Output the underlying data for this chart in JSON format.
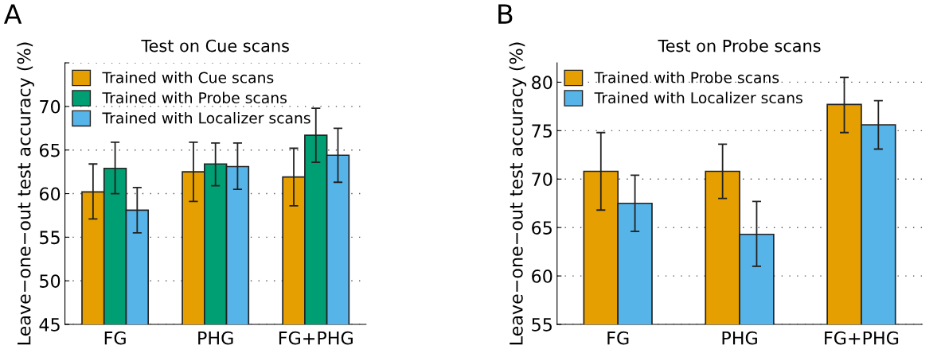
{
  "chart_data": [
    {
      "type": "bar",
      "title": "Test on Cue scans",
      "ylabel": "Leave−one−out test accuracy (%)",
      "annotations": [
        "A"
      ],
      "categories": [
        "FG",
        "PHG",
        "FG+PHG"
      ],
      "series": [
        {
          "name": "Trained with Cue scans",
          "color": "#e69f00",
          "values": [
            60.2,
            62.5,
            61.9
          ],
          "errors": [
            [
              57.1,
              63.4
            ],
            [
              59.1,
              65.9
            ],
            [
              58.6,
              65.2
            ]
          ]
        },
        {
          "name": "Trained with Probe scans",
          "color": "#009e73",
          "values": [
            62.9,
            63.4,
            66.7
          ],
          "errors": [
            [
              60.0,
              65.9
            ],
            [
              60.9,
              65.8
            ],
            [
              63.6,
              69.8
            ]
          ]
        },
        {
          "name": "Trained with Localizer scans",
          "color": "#56b4e9",
          "values": [
            58.1,
            63.1,
            64.4
          ],
          "errors": [
            [
              55.5,
              60.7
            ],
            [
              60.5,
              65.8
            ],
            [
              61.3,
              67.5
            ]
          ]
        }
      ],
      "ylim": [
        45,
        75
      ],
      "yticks": [
        45,
        50,
        55,
        60,
        65,
        70,
        {
          "value": 75,
          "label": null
        }
      ],
      "grid": "y",
      "legend": "top left"
    },
    {
      "type": "bar",
      "title": "Test on Probe scans",
      "ylabel": "Leave−one−out test accuracy (%)",
      "annotations": [
        "B"
      ],
      "categories": [
        "FG",
        "PHG",
        "FG+PHG"
      ],
      "series": [
        {
          "name": "Trained with Probe scans",
          "color": "#e69f00",
          "values": [
            70.8,
            70.8,
            77.7
          ],
          "errors": [
            [
              66.8,
              74.8
            ],
            [
              68.0,
              73.6
            ],
            [
              74.8,
              80.5
            ]
          ]
        },
        {
          "name": "Trained with Localizer scans",
          "color": "#56b4e9",
          "values": [
            67.5,
            64.3,
            75.6
          ],
          "errors": [
            [
              64.6,
              70.4
            ],
            [
              61.0,
              67.7
            ],
            [
              73.1,
              78.1
            ]
          ]
        }
      ],
      "ylim": [
        55,
        82
      ],
      "yticks": [
        55,
        60,
        65,
        70,
        75,
        80
      ],
      "grid": "y",
      "legend": "top left"
    }
  ]
}
